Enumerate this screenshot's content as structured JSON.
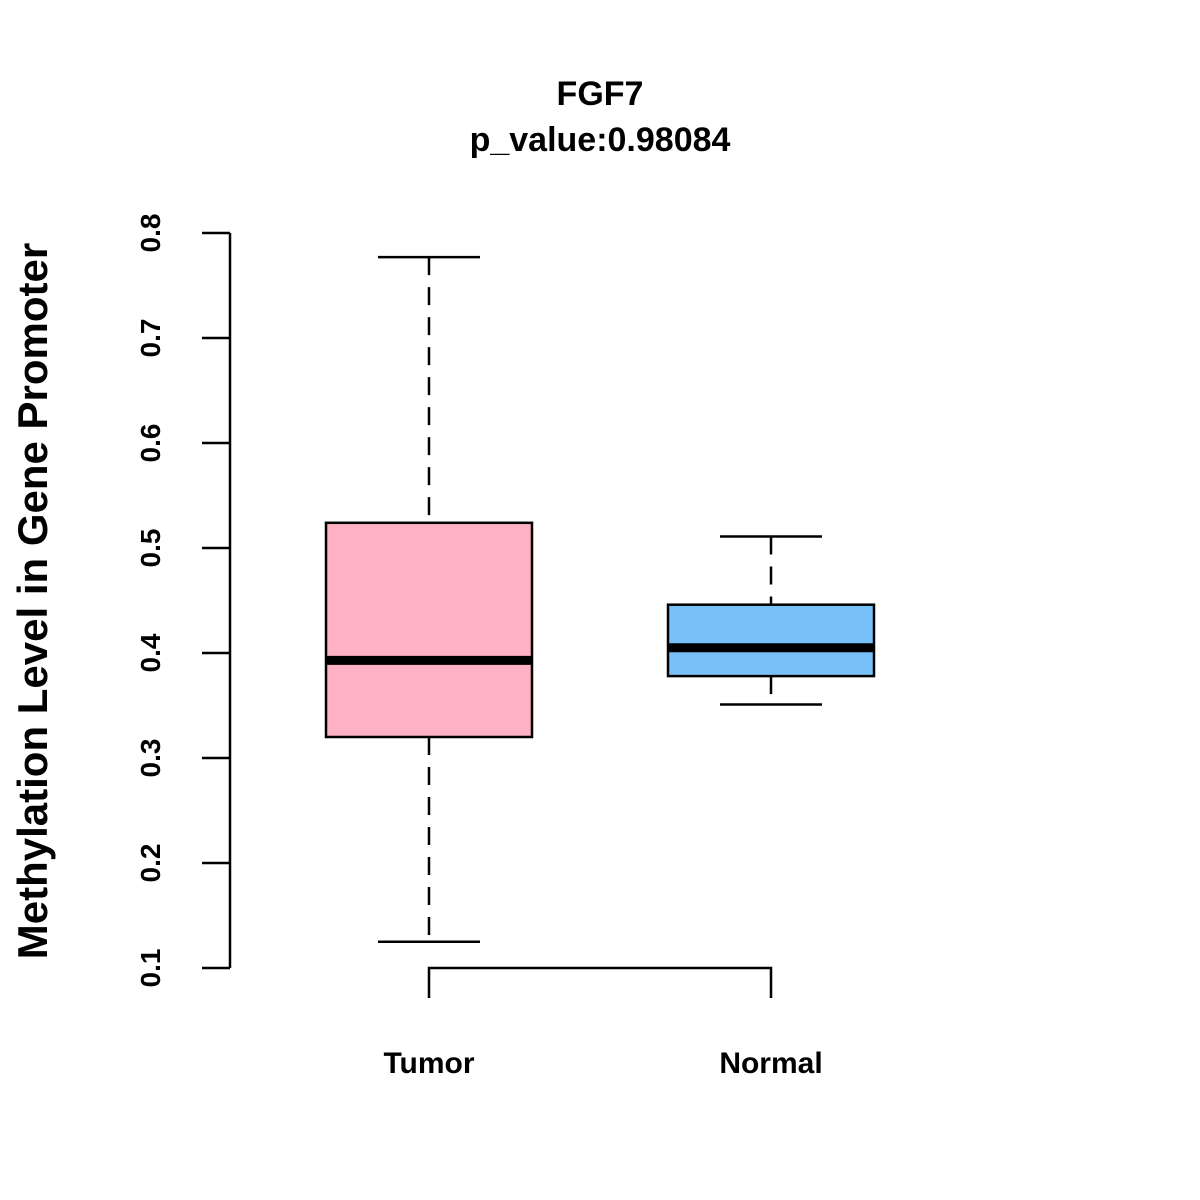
{
  "chart_data": {
    "type": "box",
    "title": "FGF7",
    "subtitle": "p_value:0.98084",
    "ylabel": "Methylation Level in Gene Promoter",
    "xlabel": "",
    "ylim": [
      0.1,
      0.8
    ],
    "yticks": [
      "0.1",
      "0.2",
      "0.3",
      "0.4",
      "0.5",
      "0.6",
      "0.7",
      "0.8"
    ],
    "categories": [
      "Tumor",
      "Normal"
    ],
    "groups": [
      {
        "label": "Tumor",
        "color": "#FDB1C2",
        "whisker_low": 0.125,
        "q1": 0.32,
        "median": 0.393,
        "q3": 0.524,
        "whisker_high": 0.777
      },
      {
        "label": "Normal",
        "color": "#78C0F8",
        "whisker_low": 0.351,
        "q1": 0.378,
        "median": 0.405,
        "q3": 0.446,
        "whisker_high": 0.511
      }
    ],
    "comparison_bracket": true,
    "grid": false,
    "legend": "none"
  }
}
